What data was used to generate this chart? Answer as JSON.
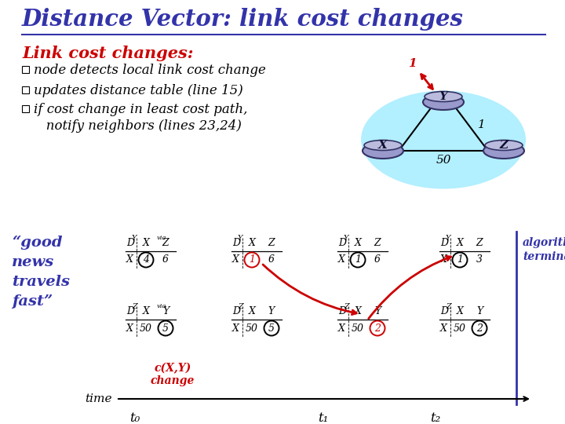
{
  "title": "Distance Vector: link cost changes",
  "title_color": "#3333AA",
  "title_fontsize": 21,
  "subtitle": "Link cost changes:",
  "subtitle_color": "#CC0000",
  "subtitle_fontsize": 15,
  "bullets": [
    "node detects local link cost change",
    "updates distance table (line 15)",
    "if cost change in least cost path,\n   notify neighbors (lines 23,24)"
  ],
  "bullet_color": "#000000",
  "bullet_fontsize": 12,
  "good_news_text": "“good\nnews\ntravels\nfast”",
  "good_news_color": "#3333AA",
  "good_news_fontsize": 14,
  "algorithm_terminates": "algorithm\nterminates",
  "alg_color": "#3333AA",
  "alg_fontsize": 10,
  "bg_color": "#FFFFFF",
  "cloud_color": "#AAEEFF",
  "node_face": "#9999CC",
  "node_edge": "#333366",
  "time_label": "time",
  "time_labels": [
    "t₀",
    "t₁",
    "t₂"
  ],
  "cxy_label": "c(X,Y)\nchange",
  "cxy_color": "#CC0000",
  "red": "#CC0000",
  "blue": "#3333AA",
  "black": "#000000"
}
